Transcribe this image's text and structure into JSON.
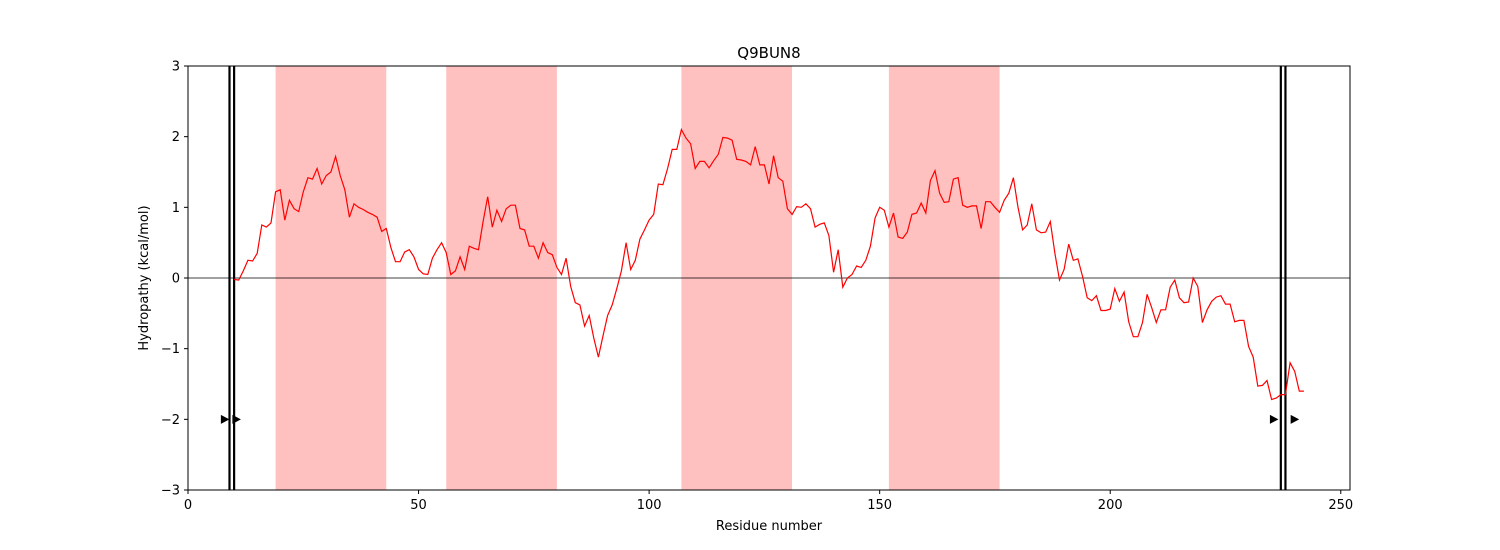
{
  "chart_data": {
    "type": "line",
    "title": "Q9BUN8",
    "xlabel": "Residue number",
    "ylabel": "Hydropathy (kcal/mol)",
    "xlim": [
      0,
      252
    ],
    "ylim": [
      -3,
      3
    ],
    "xticks": [
      0,
      50,
      100,
      150,
      200,
      250
    ],
    "yticks": [
      -3,
      -2,
      -1,
      0,
      1,
      2,
      3
    ],
    "line_color": "#ff0000",
    "region_color": "#ffc0c0",
    "zero_line": 0,
    "shaded_regions": [
      [
        19,
        43
      ],
      [
        56,
        80
      ],
      [
        107,
        131
      ],
      [
        152,
        176
      ]
    ],
    "boundary_lines": [
      9,
      10,
      237,
      238
    ],
    "arrow_markers": [
      {
        "x": 8,
        "y": -2,
        "direction": "right"
      },
      {
        "x": 10.5,
        "y": -2,
        "direction": "right"
      },
      {
        "x": 235.5,
        "y": -2,
        "direction": "right"
      },
      {
        "x": 240,
        "y": -2,
        "direction": "right"
      }
    ],
    "series": [
      {
        "x": [
          10,
          11,
          12,
          13,
          14,
          15,
          16,
          17,
          18,
          19,
          20,
          21,
          22,
          23,
          24,
          25,
          26,
          27,
          28,
          29,
          30,
          31,
          32,
          33,
          34,
          35,
          36,
          37,
          38,
          39,
          40,
          41,
          42,
          43,
          44,
          45,
          46,
          47,
          48,
          49,
          50,
          51,
          52,
          53,
          54,
          55,
          56,
          57,
          58,
          59,
          60,
          61,
          62,
          63,
          64,
          65,
          66,
          67,
          68,
          69,
          70,
          71,
          72,
          73,
          74,
          75,
          76,
          77,
          78,
          79,
          80,
          81,
          82,
          83,
          84,
          85,
          86,
          87,
          88,
          89,
          90,
          91,
          92,
          93,
          94,
          95,
          96,
          97,
          98,
          99,
          100,
          101,
          102,
          103,
          104,
          105,
          106,
          107,
          108,
          109,
          110,
          111,
          112,
          113,
          114,
          115,
          116,
          117,
          118,
          119,
          120,
          121,
          122,
          123,
          124,
          125,
          126,
          127,
          128,
          129,
          130,
          131,
          132,
          133,
          134,
          135,
          136,
          137,
          138,
          139,
          140,
          141,
          142,
          143,
          144,
          145,
          146,
          147,
          148,
          149,
          150,
          151,
          152,
          153,
          154,
          155,
          156,
          157,
          158,
          159,
          160,
          161,
          162,
          163,
          164,
          165,
          166,
          167,
          168,
          169,
          170,
          171,
          172,
          173,
          174,
          175,
          176,
          177,
          178,
          179,
          180,
          181,
          182,
          183,
          184,
          185,
          186,
          187,
          188,
          189,
          190,
          191,
          192,
          193,
          194,
          195,
          196,
          197,
          198,
          199,
          200,
          201,
          202,
          203,
          204,
          205,
          206,
          207,
          208,
          209,
          210,
          211,
          212,
          213,
          214,
          215,
          216,
          217,
          218,
          219,
          220,
          221,
          222,
          223,
          224,
          225,
          226,
          227,
          228,
          229,
          230,
          231,
          232,
          233,
          234,
          235,
          236,
          237,
          238,
          239,
          240,
          241,
          242
        ],
        "y": [
          -0.02,
          -0.03,
          0.1,
          0.25,
          0.24,
          0.35,
          0.75,
          0.72,
          0.78,
          1.22,
          1.25,
          0.82,
          1.1,
          0.98,
          0.94,
          1.22,
          1.42,
          1.4,
          1.55,
          1.33,
          1.45,
          1.5,
          1.72,
          1.45,
          1.25,
          0.86,
          1.05,
          1.0,
          0.97,
          0.93,
          0.9,
          0.86,
          0.66,
          0.7,
          0.43,
          0.23,
          0.23,
          0.37,
          0.4,
          0.3,
          0.12,
          0.06,
          0.05,
          0.28,
          0.4,
          0.5,
          0.36,
          0.05,
          0.1,
          0.3,
          0.12,
          0.45,
          0.42,
          0.4,
          0.8,
          1.15,
          0.72,
          0.96,
          0.8,
          0.98,
          1.03,
          1.03,
          0.7,
          0.68,
          0.45,
          0.45,
          0.28,
          0.5,
          0.36,
          0.33,
          0.15,
          0.05,
          0.28,
          -0.12,
          -0.35,
          -0.38,
          -0.68,
          -0.53,
          -0.85,
          -1.12,
          -0.82,
          -0.53,
          -0.38,
          -0.15,
          0.1,
          0.5,
          0.12,
          0.25,
          0.55,
          0.68,
          0.82,
          0.9,
          1.33,
          1.32,
          1.55,
          1.82,
          1.82,
          2.1,
          1.98,
          1.9,
          1.55,
          1.65,
          1.65,
          1.56,
          1.66,
          1.75,
          1.99,
          1.98,
          1.95,
          1.68,
          1.67,
          1.65,
          1.6,
          1.86,
          1.6,
          1.6,
          1.33,
          1.73,
          1.42,
          1.37,
          0.98,
          0.9,
          1.01,
          1.0,
          1.05,
          0.98,
          0.72,
          0.76,
          0.78,
          0.6,
          0.08,
          0.4,
          -0.13,
          0.0,
          0.05,
          0.17,
          0.15,
          0.25,
          0.45,
          0.85,
          1.0,
          0.96,
          0.72,
          0.92,
          0.58,
          0.56,
          0.65,
          0.9,
          0.92,
          1.06,
          0.92,
          1.38,
          1.52,
          1.2,
          1.07,
          1.08,
          1.4,
          1.42,
          1.03,
          1.0,
          1.02,
          1.02,
          0.7,
          1.08,
          1.08,
          1.0,
          0.93,
          1.1,
          1.2,
          1.42,
          1.0,
          0.68,
          0.75,
          1.05,
          0.68,
          0.64,
          0.65,
          0.8,
          0.35,
          -0.03,
          0.12,
          0.48,
          0.25,
          0.27,
          0.02,
          -0.28,
          -0.32,
          -0.25,
          -0.46,
          -0.46,
          -0.44,
          -0.15,
          -0.33,
          -0.2,
          -0.62,
          -0.83,
          -0.83,
          -0.63,
          -0.23,
          -0.42,
          -0.63,
          -0.45,
          -0.45,
          -0.13,
          -0.03,
          -0.28,
          -0.35,
          -0.34,
          0.0,
          -0.12,
          -0.63,
          -0.45,
          -0.33,
          -0.27,
          -0.25,
          -0.37,
          -0.37,
          -0.62,
          -0.6,
          -0.6,
          -0.97,
          -1.12,
          -1.53,
          -1.52,
          -1.45,
          -1.72,
          -1.7,
          -1.65,
          -1.65,
          -1.2,
          -1.32,
          -1.6,
          -1.6
        ]
      }
    ]
  }
}
